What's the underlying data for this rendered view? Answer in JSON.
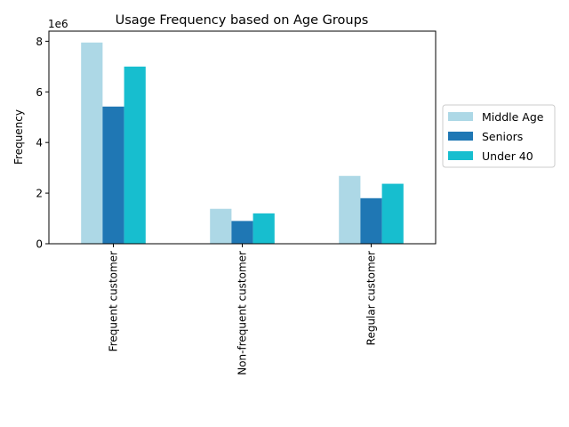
{
  "chart_data": {
    "type": "bar",
    "title": "Usage Frequency based on Age Groups",
    "xlabel": "",
    "ylabel": "Frequency",
    "y_offset_text": "1e6",
    "ylim": [
      0,
      8400000
    ],
    "yticks": [
      0,
      2000000,
      4000000,
      6000000,
      8000000
    ],
    "ytick_labels": [
      "0",
      "2",
      "4",
      "6",
      "8"
    ],
    "categories": [
      "Frequent customer",
      "Non-frequent customer",
      "Regular customer"
    ],
    "series": [
      {
        "name": "Middle Age",
        "color": "#add8e6",
        "values": [
          7950000,
          1380000,
          2680000
        ]
      },
      {
        "name": "Seniors",
        "color": "#1f77b4",
        "values": [
          5420000,
          900000,
          1800000
        ]
      },
      {
        "name": "Under 40",
        "color": "#17becf",
        "values": [
          7000000,
          1200000,
          2370000
        ]
      }
    ],
    "legend": {
      "placement": "right-outside"
    },
    "grid": false
  }
}
